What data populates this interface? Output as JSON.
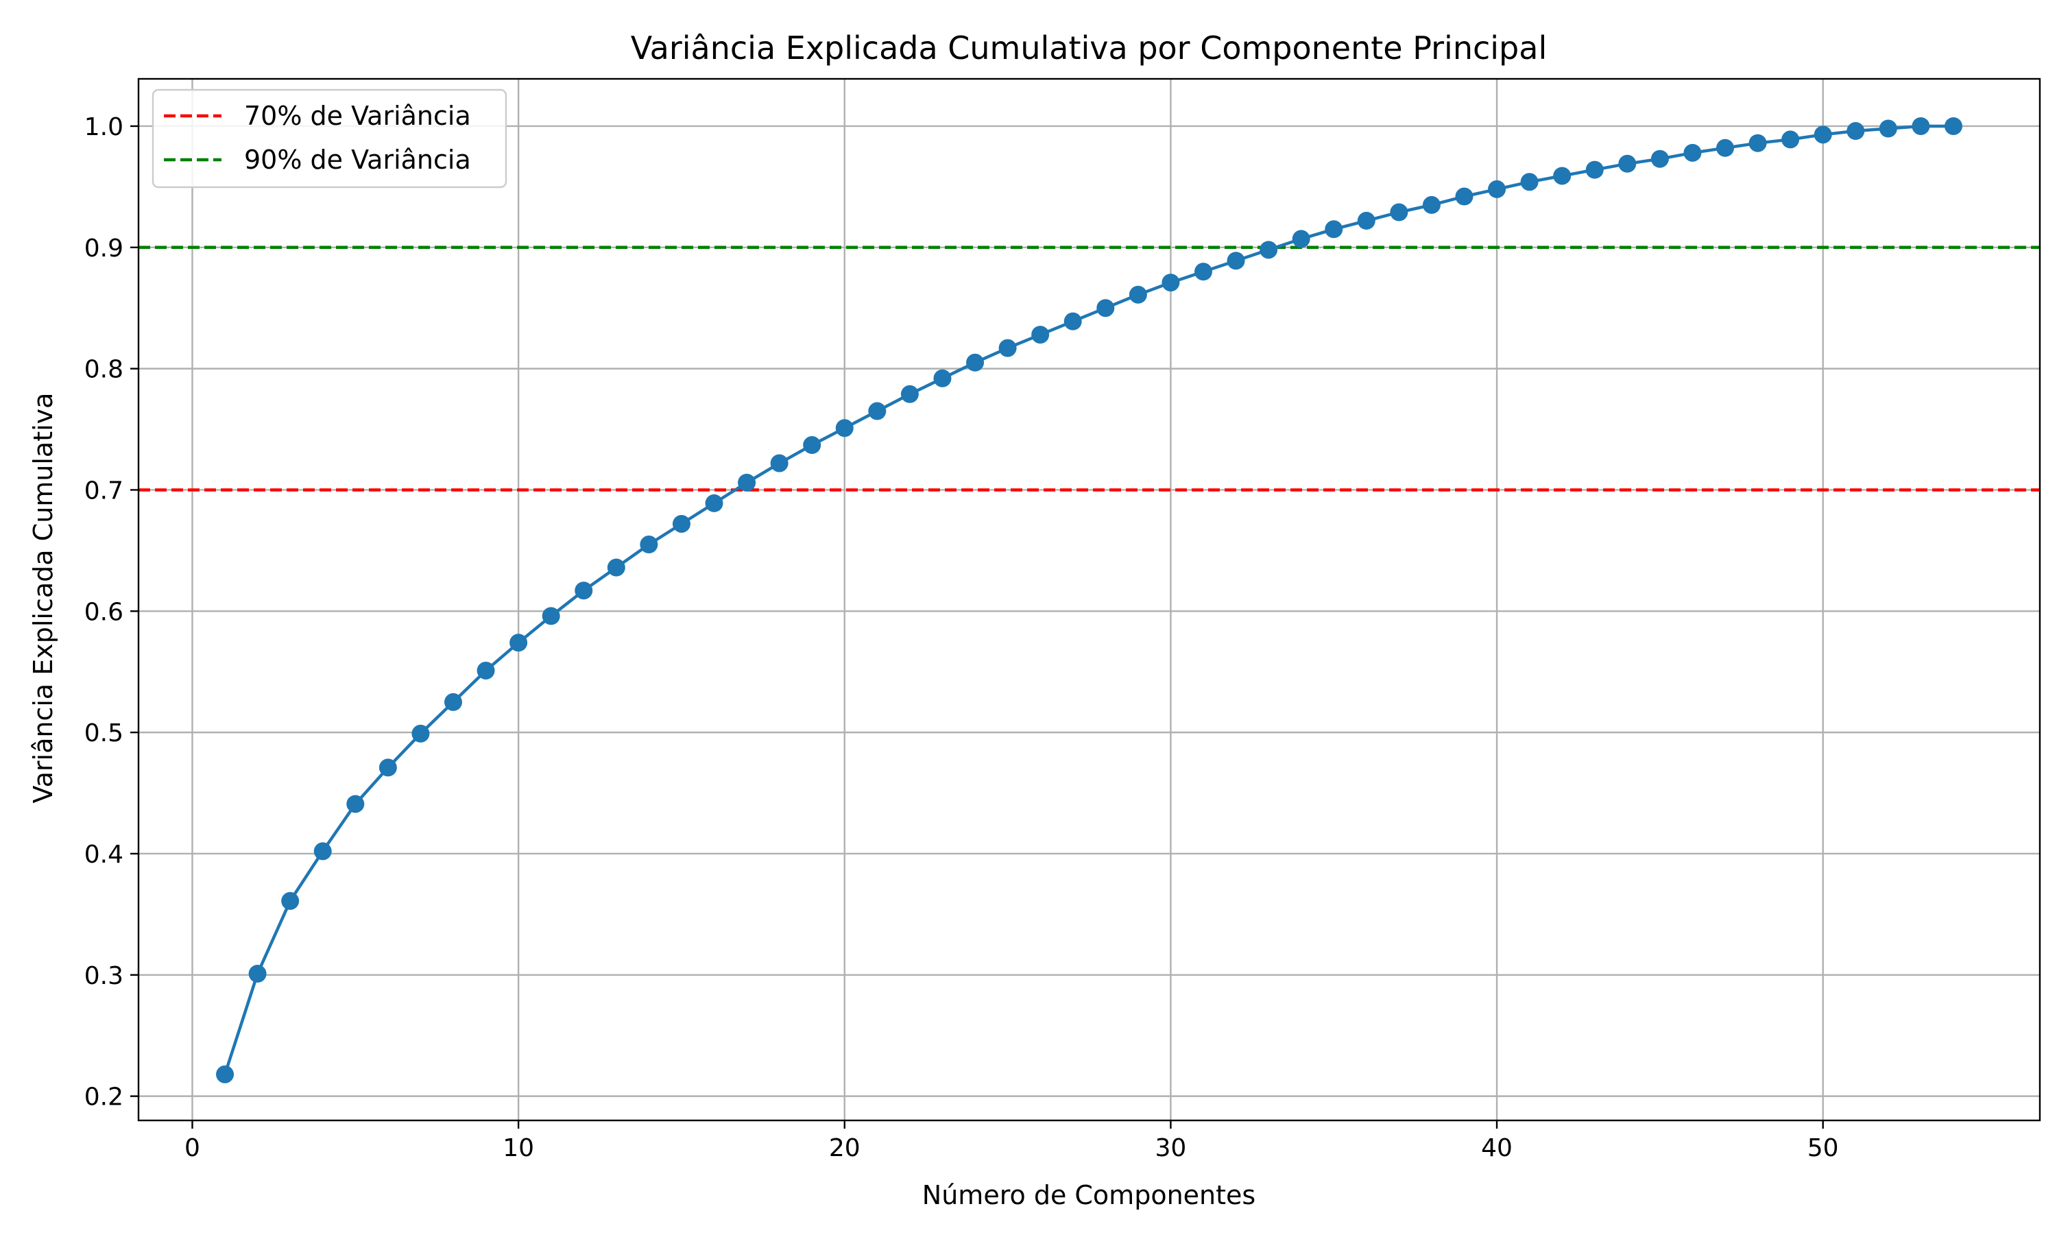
{
  "chart_data": {
    "type": "line",
    "title": "Variância Explicada Cumulativa por Componente Principal",
    "xlabel": "Número de Componentes",
    "ylabel": "Variância Explicada Cumulativa",
    "xlim": [
      -1.65,
      56.65
    ],
    "ylim": [
      0.18,
      1.039
    ],
    "xticks": [
      0,
      10,
      20,
      30,
      40,
      50
    ],
    "xtick_labels": [
      "0",
      "10",
      "20",
      "30",
      "40",
      "50"
    ],
    "yticks": [
      0.2,
      0.3,
      0.4,
      0.5,
      0.6,
      0.7,
      0.8,
      0.9,
      1.0
    ],
    "ytick_labels": [
      "0.2",
      "0.3",
      "0.4",
      "0.5",
      "0.6",
      "0.7",
      "0.8",
      "0.9",
      "1.0"
    ],
    "grid": true,
    "legend_position": "top-left",
    "series": [
      {
        "color": "#1f77b4",
        "marker": "circle",
        "x": [
          1,
          2,
          3,
          4,
          5,
          6,
          7,
          8,
          9,
          10,
          11,
          12,
          13,
          14,
          15,
          16,
          17,
          18,
          19,
          20,
          21,
          22,
          23,
          24,
          25,
          26,
          27,
          28,
          29,
          30,
          31,
          32,
          33,
          34,
          35,
          36,
          37,
          38,
          39,
          40,
          41,
          42,
          43,
          44,
          45,
          46,
          47,
          48,
          49,
          50,
          51,
          52,
          53,
          54
        ],
        "y": [
          0.218,
          0.301,
          0.361,
          0.402,
          0.441,
          0.471,
          0.499,
          0.525,
          0.551,
          0.574,
          0.596,
          0.617,
          0.636,
          0.655,
          0.672,
          0.689,
          0.706,
          0.722,
          0.737,
          0.751,
          0.765,
          0.779,
          0.792,
          0.805,
          0.817,
          0.828,
          0.839,
          0.85,
          0.861,
          0.871,
          0.88,
          0.889,
          0.898,
          0.907,
          0.915,
          0.922,
          0.929,
          0.935,
          0.942,
          0.948,
          0.954,
          0.959,
          0.964,
          0.969,
          0.973,
          0.978,
          0.982,
          0.986,
          0.989,
          0.993,
          0.996,
          0.998,
          1.0,
          1.0
        ]
      }
    ],
    "reference_lines": [
      {
        "name": "70% de Variância",
        "y": 0.7,
        "color": "#ff0000",
        "style": "dashed"
      },
      {
        "name": "90% de Variância",
        "y": 0.9,
        "color": "#008000",
        "style": "dashed"
      }
    ]
  }
}
